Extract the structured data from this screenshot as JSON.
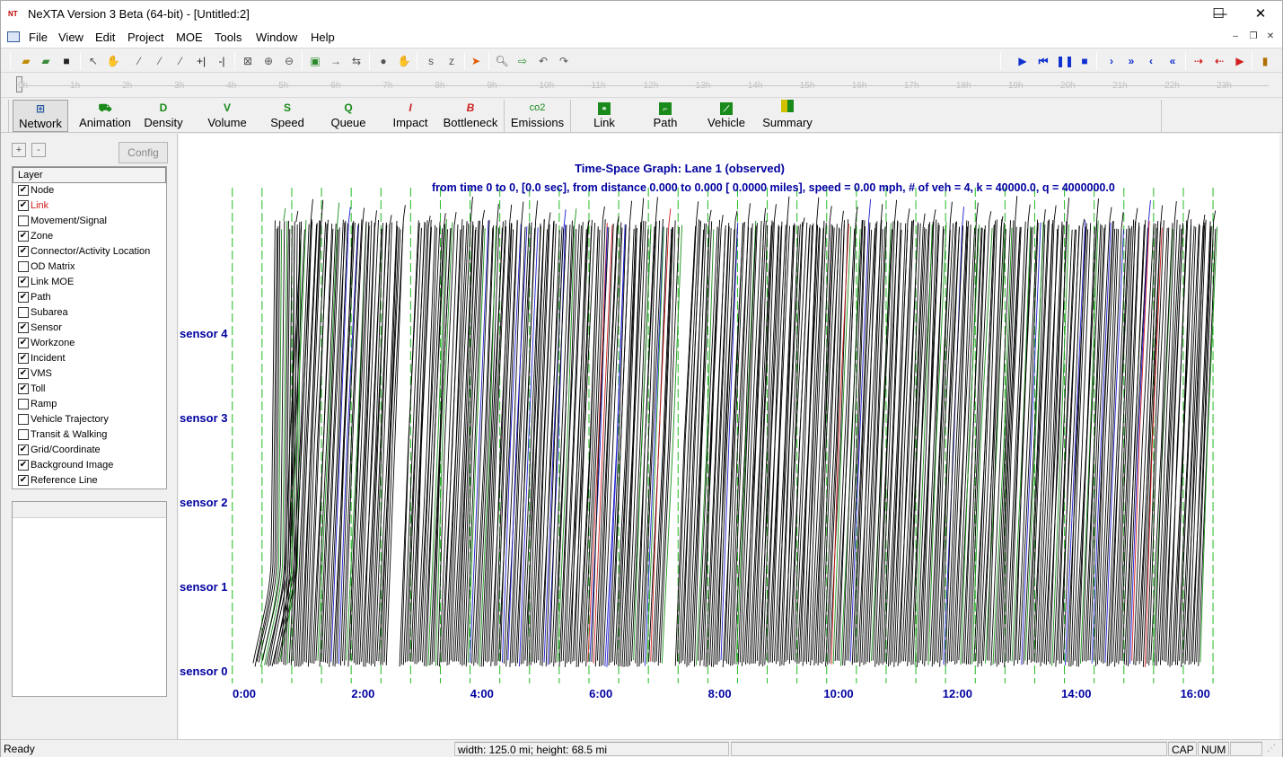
{
  "app": {
    "icon_text": "NT",
    "title": "NeXTA Version 3 Beta (64-bit) - [Untitled:2]",
    "controls": {
      "minimize": "—",
      "maximize": "☐",
      "close": "✕"
    }
  },
  "menu": {
    "items": [
      "File",
      "View",
      "Edit",
      "Project",
      "MOE",
      "Tools",
      "Window",
      "Help"
    ],
    "mdi_controls": [
      "–",
      "❐",
      "✕"
    ]
  },
  "toolbar": {
    "left_icons": [
      "open-icon",
      "open-project-icon",
      "save-icon",
      "select-icon",
      "pan-icon",
      "create-link-icon",
      "create-node-icon",
      "edit-icon",
      "insert-icon",
      "split-icon",
      "fit-icon",
      "zoom-in-icon",
      "zoom-out-icon",
      "screenshot-icon",
      "move-right-icon",
      "swap-icon",
      "paint-icon",
      "hand-icon",
      "ref-point-icon",
      "ref-point-2-icon",
      "bottleneck-icon",
      "search-icon",
      "export-icon",
      "undo-icon",
      "redo-icon"
    ],
    "playback_icons": [
      "play-icon",
      "rewind-icon",
      "pause-icon",
      "stop-icon",
      "step-forward-icon",
      "fast-forward-icon",
      "step-back-icon",
      "fast-back-icon",
      "red-step-forward-icon",
      "red-step-back-icon",
      "red-play-icon",
      "layout-icon"
    ]
  },
  "timeline": {
    "hours": [
      "0h",
      "1h",
      "2h",
      "3h",
      "4h",
      "5h",
      "6h",
      "7h",
      "8h",
      "9h",
      "10h",
      "11h",
      "12h",
      "13h",
      "14h",
      "15h",
      "16h",
      "17h",
      "18h",
      "19h",
      "20h",
      "21h",
      "22h",
      "23h"
    ]
  },
  "modes": [
    {
      "label": "Network",
      "icon": "N",
      "icon_name": "network-icon",
      "color": "#2c5aa0",
      "active": true
    },
    {
      "label": "Animation",
      "icon": "A",
      "icon_name": "animation-icon",
      "color": "#1a8a1a",
      "active": false
    },
    {
      "label": "Density",
      "icon": "D",
      "icon_name": "density-icon",
      "color": "#1a8a1a",
      "active": false
    },
    {
      "label": "Volume",
      "icon": "V",
      "icon_name": "volume-icon",
      "color": "#1a8a1a",
      "active": false
    },
    {
      "label": "Speed",
      "icon": "S",
      "icon_name": "speed-icon",
      "color": "#1a8a1a",
      "active": false
    },
    {
      "label": "Queue",
      "icon": "Q",
      "icon_name": "queue-icon",
      "color": "#1a8a1a",
      "active": false
    },
    {
      "label": "Impact",
      "icon": "I",
      "icon_name": "impact-icon",
      "color": "#d02020",
      "active": false
    },
    {
      "label": "Bottleneck",
      "icon": "B",
      "icon_name": "bottleneck-icon",
      "color": "#d02020",
      "active": false
    },
    {
      "label": "Emissions",
      "icon": "co2",
      "icon_name": "emissions-icon",
      "color": "#1a8a1a",
      "active": false
    },
    {
      "label": "Link",
      "icon": "L",
      "icon_name": "link-icon",
      "color": "#1a8a1a",
      "active": false
    },
    {
      "label": "Path",
      "icon": "P",
      "icon_name": "path-icon",
      "color": "#1a8a1a",
      "active": false
    },
    {
      "label": "Vehicle",
      "icon": "V",
      "icon_name": "vehicle-icon",
      "color": "#1a8a1a",
      "active": false
    },
    {
      "label": "Summary",
      "icon": "▦",
      "icon_name": "summary-icon",
      "color": "#1a8a1a",
      "active": false
    }
  ],
  "left_panel": {
    "add_label": "+",
    "remove_label": "-",
    "config_label": "Config",
    "layer_header": "Layer",
    "layers": [
      {
        "label": "Node",
        "checked": true,
        "highlight": false
      },
      {
        "label": "Link",
        "checked": true,
        "highlight": true
      },
      {
        "label": "Movement/Signal",
        "checked": false,
        "highlight": false
      },
      {
        "label": "Zone",
        "checked": true,
        "highlight": false
      },
      {
        "label": "Connector/Activity Location",
        "checked": true,
        "highlight": false
      },
      {
        "label": "OD Matrix",
        "checked": false,
        "highlight": false
      },
      {
        "label": "Link MOE",
        "checked": true,
        "highlight": false
      },
      {
        "label": "Path",
        "checked": true,
        "highlight": false
      },
      {
        "label": "Subarea",
        "checked": false,
        "highlight": false
      },
      {
        "label": "Sensor",
        "checked": true,
        "highlight": false
      },
      {
        "label": "Workzone",
        "checked": true,
        "highlight": false
      },
      {
        "label": "Incident",
        "checked": true,
        "highlight": false
      },
      {
        "label": "VMS",
        "checked": true,
        "highlight": false
      },
      {
        "label": "Toll",
        "checked": true,
        "highlight": false
      },
      {
        "label": "Ramp",
        "checked": false,
        "highlight": false
      },
      {
        "label": "Vehicle Trajectory",
        "checked": false,
        "highlight": false
      },
      {
        "label": "Transit & Walking",
        "checked": false,
        "highlight": false
      },
      {
        "label": "Grid/Coordinate",
        "checked": true,
        "highlight": false
      },
      {
        "label": "Background Image",
        "checked": true,
        "highlight": false
      },
      {
        "label": "Reference Line",
        "checked": true,
        "highlight": false
      }
    ]
  },
  "graph": {
    "title": "Time-Space Graph: Lane 1 (observed)",
    "subtitle": "from time 0 to 0, [0.0 sec], from distance    0.000 to    0.000 [  0.0000 miles], speed =  0.00 mph, # of veh = 4, k = 40000.0, q = 4000000.0",
    "sensors": [
      "sensor 0",
      "sensor 1",
      "sensor 2",
      "sensor 3",
      "sensor 4"
    ],
    "x_ticks": [
      "0:00",
      "2:00",
      "4:00",
      "6:00",
      "8:00",
      "10:00",
      "12:00",
      "14:00",
      "16:00"
    ],
    "colors": {
      "label": "#0000a0",
      "trajectory": "#000000",
      "alt_green": "#1a8f1a",
      "alt_blue": "#1a1ad0",
      "alt_red": "#d01a1a",
      "grid": "#22bb22"
    }
  },
  "chart_data": {
    "type": "line",
    "title": "Time-Space Graph: Lane 1 (observed)",
    "xlabel": "",
    "ylabel": "",
    "x_tick_labels": [
      "0:00",
      "2:00",
      "4:00",
      "6:00",
      "8:00",
      "10:00",
      "12:00",
      "14:00",
      "16:00"
    ],
    "y_tick_labels": [
      "sensor 0",
      "sensor 1",
      "sensor 2",
      "sensor 3",
      "sensor 4"
    ],
    "xlim": [
      0,
      16.5
    ],
    "grid": true,
    "gaps": [
      [
        2.4,
        2.6
      ],
      [
        7.05,
        7.25
      ]
    ],
    "series_description": "Dense vehicle trajectories (mostly black, some green, blue, red) running from sensor 0 to beyond sensor 4 between ~0:15 and ~16:10"
  },
  "status": {
    "left": "Ready",
    "middle": "width: 125.0 mi; height: 68.5 mi",
    "cap": "CAP",
    "num": "NUM"
  }
}
